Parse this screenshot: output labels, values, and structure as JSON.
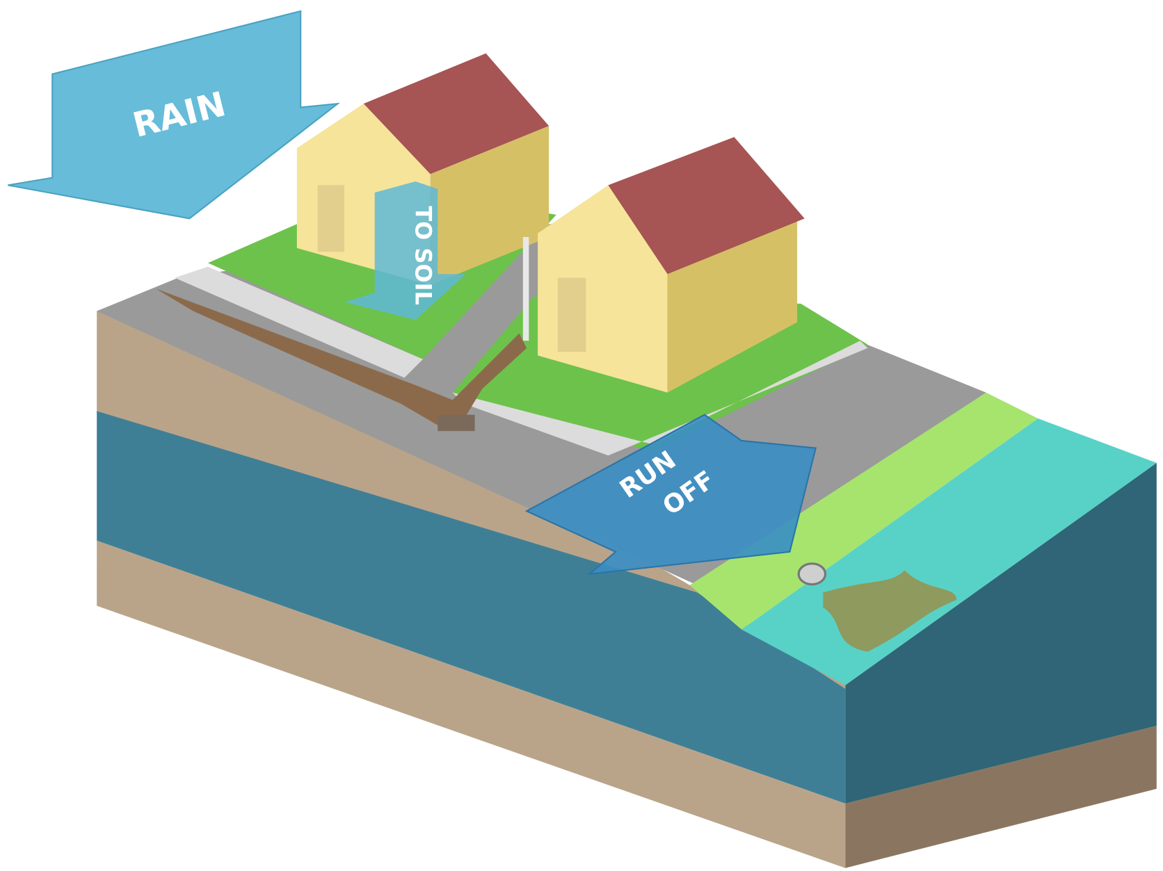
{
  "labels": {
    "rain": "RAIN",
    "to_soil": "TO SOIL",
    "run_off": [
      "RUN",
      "OFF"
    ]
  }
}
